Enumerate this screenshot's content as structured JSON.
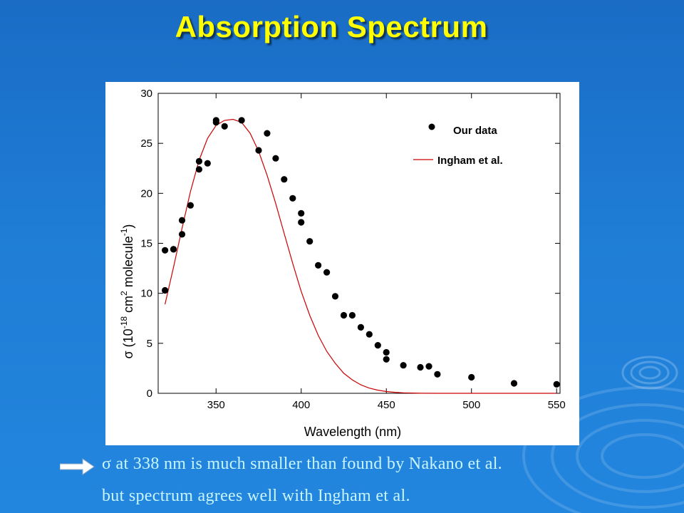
{
  "slide": {
    "title": "Absorption Spectrum",
    "bullets": [
      "σ at 338 nm is much smaller than found by Nakano et al.",
      "but spectrum agrees well with Ingham et al."
    ],
    "arrow_icon": "right-arrow-icon"
  },
  "colors": {
    "background": "#1f7dd6",
    "title": "#ffff00",
    "bullet_text": "#c8f5ff",
    "fit_line": "#cc0000",
    "points": "#000000"
  },
  "chart_data": {
    "type": "scatter",
    "title": "",
    "xlabel": "Wavelength (nm)",
    "ylabel": "σ (10^-18 cm^2 molecule^-1)",
    "ylabel_parts": {
      "sigma": "σ (10",
      "exp1": "-18",
      "cm": " cm",
      "exp2": "2",
      "molecule": " molecule",
      "exp3": "-1",
      "close": ")"
    },
    "xlim": [
      316,
      552
    ],
    "ylim": [
      0,
      30
    ],
    "xticks": [
      350,
      400,
      450,
      500,
      550
    ],
    "yticks": [
      0,
      5,
      10,
      15,
      20,
      25,
      30
    ],
    "grid": false,
    "legend_position": "top-right",
    "series": [
      {
        "name": "Our data",
        "kind": "points",
        "points": [
          [
            320,
            14.3
          ],
          [
            320,
            10.3
          ],
          [
            325,
            14.4
          ],
          [
            325,
            14.4
          ],
          [
            330,
            17.3
          ],
          [
            330,
            15.9
          ],
          [
            335,
            18.8
          ],
          [
            340,
            23.2
          ],
          [
            340,
            22.4
          ],
          [
            345,
            23.0
          ],
          [
            350,
            27.3
          ],
          [
            350,
            27.1
          ],
          [
            355,
            26.7
          ],
          [
            365,
            27.3
          ],
          [
            375,
            24.3
          ],
          [
            380,
            26.0
          ],
          [
            385,
            23.5
          ],
          [
            390,
            21.4
          ],
          [
            395,
            19.5
          ],
          [
            400,
            18.0
          ],
          [
            400,
            17.1
          ],
          [
            405,
            15.2
          ],
          [
            410,
            12.8
          ],
          [
            415,
            12.1
          ],
          [
            420,
            9.7
          ],
          [
            425,
            7.8
          ],
          [
            430,
            7.8
          ],
          [
            435,
            6.6
          ],
          [
            440,
            5.9
          ],
          [
            445,
            4.8
          ],
          [
            450,
            4.1
          ],
          [
            450,
            3.4
          ],
          [
            460,
            2.8
          ],
          [
            470,
            2.6
          ],
          [
            475,
            2.7
          ],
          [
            480,
            1.9
          ],
          [
            500,
            1.6
          ],
          [
            525,
            1.0
          ],
          [
            550,
            0.9
          ]
        ]
      },
      {
        "name": "Ingham et al.",
        "kind": "line",
        "points": [
          [
            320,
            8.9
          ],
          [
            325,
            12.6
          ],
          [
            330,
            16.5
          ],
          [
            335,
            20.2
          ],
          [
            340,
            23.3
          ],
          [
            345,
            25.5
          ],
          [
            350,
            26.8
          ],
          [
            355,
            27.3
          ],
          [
            360,
            27.4
          ],
          [
            365,
            27.1
          ],
          [
            370,
            26.0
          ],
          [
            375,
            24.2
          ],
          [
            380,
            21.8
          ],
          [
            385,
            19.0
          ],
          [
            390,
            16.0
          ],
          [
            395,
            13.0
          ],
          [
            400,
            10.2
          ],
          [
            405,
            7.8
          ],
          [
            410,
            5.8
          ],
          [
            415,
            4.2
          ],
          [
            420,
            3.0
          ],
          [
            425,
            2.0
          ],
          [
            430,
            1.35
          ],
          [
            435,
            0.85
          ],
          [
            440,
            0.52
          ],
          [
            445,
            0.31
          ],
          [
            450,
            0.18
          ],
          [
            455,
            0.1
          ],
          [
            460,
            0.05
          ],
          [
            470,
            0.01
          ],
          [
            480,
            0.0
          ],
          [
            500,
            0.0
          ],
          [
            520,
            0.0
          ],
          [
            550,
            0.0
          ]
        ]
      }
    ]
  }
}
